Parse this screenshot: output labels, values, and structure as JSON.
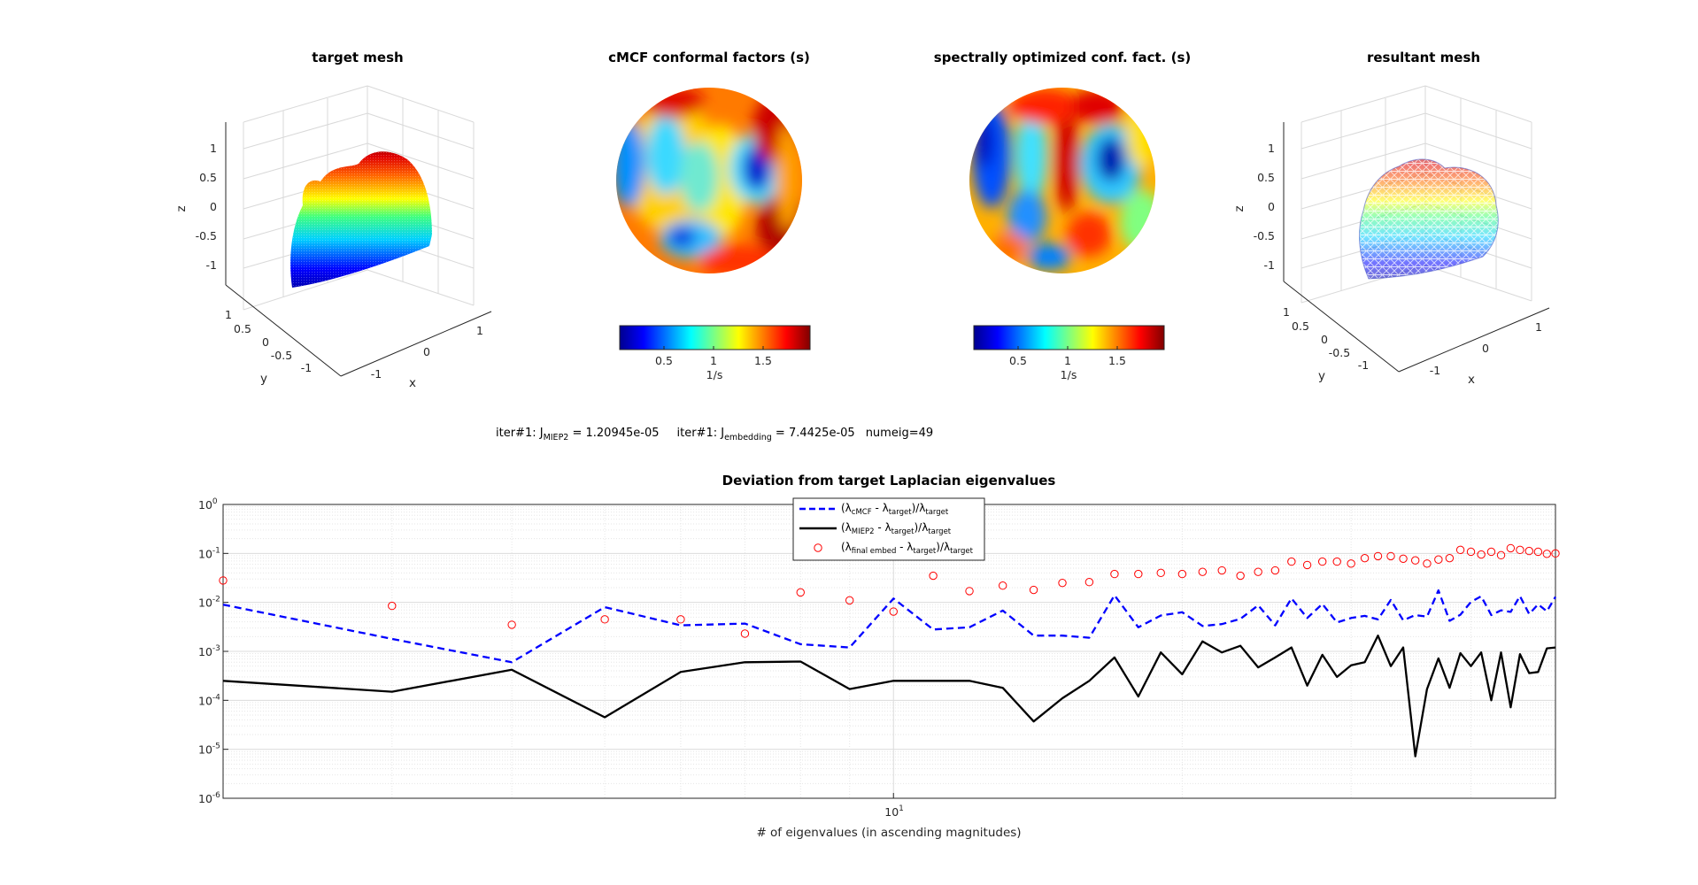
{
  "panels": {
    "target_mesh": {
      "title": "target mesh",
      "z_ticks": [
        "1",
        "0.5",
        "0",
        "-0.5",
        "-1"
      ],
      "y_ticks": [
        "1",
        "0.5",
        "0",
        "-0.5",
        "-1"
      ],
      "x_ticks": [
        "-1",
        "0",
        "1"
      ],
      "x_label": "x",
      "y_label": "y",
      "z_label": "z"
    },
    "cmcf": {
      "title": "cMCF conformal factors (s)",
      "colorbar_ticks": [
        "0.5",
        "1",
        "1.5"
      ],
      "colorbar_label": "1/s"
    },
    "spectral": {
      "title": "spectrally optimized conf. fact. (s)",
      "colorbar_ticks": [
        "0.5",
        "1",
        "1.5"
      ],
      "colorbar_label": "1/s"
    },
    "resultant_mesh": {
      "title": "resultant mesh",
      "z_ticks": [
        "1",
        "0.5",
        "0",
        "-0.5",
        "-1"
      ],
      "y_ticks": [
        "1",
        "0.5",
        "0",
        "-0.5",
        "-1"
      ],
      "x_ticks": [
        "-1",
        "0",
        "1"
      ],
      "x_label": "x",
      "y_label": "y",
      "z_label": "z"
    }
  },
  "info_line": {
    "part1": "iter#1: J",
    "part1_sub": "MIEP2",
    "part2": " = 1.20945e-05",
    "part3": "iter#1: J",
    "part3_sub": "embedding",
    "part4": " = 7.4425e-05",
    "part5": "numeig=49"
  },
  "legend": {
    "cmcf": {
      "a": "(λ",
      "sub1": "cMCF",
      "b": " - λ",
      "sub2": "target",
      "c": ")/λ",
      "sub3": "target"
    },
    "miep2": {
      "a": "(λ",
      "sub1": "MIEP2",
      "b": " - λ",
      "sub2": "target",
      "c": ")/λ",
      "sub3": "target"
    },
    "final": {
      "a": "(λ",
      "sub1": "final embed",
      "b": " - λ",
      "sub2": "target",
      "c": ")/λ",
      "sub3": "target"
    }
  },
  "colors": {
    "cmcf": "#0000ff",
    "miep2": "#000000",
    "final": "#ff0000"
  },
  "chart_data": {
    "type": "line",
    "title": "Deviation from target Laplacian eigenvalues",
    "xlabel": "# of eigenvalues (in ascending magnitudes)",
    "ylabel": "",
    "xscale": "log",
    "yscale": "log",
    "xlim": [
      2,
      49
    ],
    "ylim": [
      1e-06,
      1
    ],
    "x_ticks": [
      {
        "value": 10,
        "base": "10",
        "exp": "1"
      }
    ],
    "y_ticks": [
      {
        "value": 1,
        "base": "10",
        "exp": "0"
      },
      {
        "value": 0.1,
        "base": "10",
        "exp": "-1"
      },
      {
        "value": 0.01,
        "base": "10",
        "exp": "-2"
      },
      {
        "value": 0.001,
        "base": "10",
        "exp": "-3"
      },
      {
        "value": 0.0001,
        "base": "10",
        "exp": "-4"
      },
      {
        "value": 1e-05,
        "base": "10",
        "exp": "-5"
      },
      {
        "value": 1e-06,
        "base": "10",
        "exp": "-6"
      }
    ],
    "grid": true,
    "legend_position": "top-center",
    "x": [
      2,
      3,
      4,
      5,
      6,
      7,
      8,
      9,
      10,
      11,
      12,
      13,
      14,
      15,
      16,
      17,
      18,
      19,
      20,
      21,
      22,
      23,
      24,
      25,
      26,
      27,
      28,
      29,
      30,
      31,
      32,
      33,
      34,
      35,
      36,
      37,
      38,
      39,
      40,
      41,
      42,
      43,
      44,
      45,
      46,
      47,
      48,
      49
    ],
    "series": [
      {
        "name": "cMCF",
        "style": "dashed",
        "values": [
          0.009,
          0.0018,
          0.0006,
          0.008,
          0.0034,
          0.0037,
          0.0014,
          0.0012,
          0.012,
          0.0028,
          0.0031,
          0.0068,
          0.0021,
          0.0021,
          0.0019,
          0.014,
          0.0031,
          0.0054,
          0.0063,
          0.0033,
          0.0036,
          0.0046,
          0.0087,
          0.0034,
          0.0121,
          0.0048,
          0.0093,
          0.0039,
          0.0048,
          0.0053,
          0.0045,
          0.0112,
          0.0043,
          0.0055,
          0.0051,
          0.0176,
          0.0042,
          0.0056,
          0.0102,
          0.0133,
          0.0055,
          0.0069,
          0.0064,
          0.0134,
          0.0058,
          0.0091,
          0.0066,
          0.013
        ]
      },
      {
        "name": "MIEP2",
        "style": "solid",
        "values": [
          0.00025,
          0.00015,
          0.00042,
          4.5e-05,
          0.00038,
          0.0006,
          0.00062,
          0.00017,
          0.00025,
          0.00025,
          0.00025,
          0.00018,
          3.7e-05,
          0.00011,
          0.00025,
          0.00075,
          0.00012,
          0.00095,
          0.00034,
          0.0016,
          0.00095,
          0.0013,
          0.00047,
          0.00075,
          0.0012,
          0.0002,
          0.00085,
          0.0003,
          0.00052,
          0.0006,
          0.0021,
          0.0005,
          0.0012,
          7.2e-06,
          0.00017,
          0.00072,
          0.00018,
          0.00092,
          0.0005,
          0.00095,
          0.0001,
          0.00095,
          7.2e-05,
          0.00088,
          0.00036,
          0.00038,
          0.00115,
          0.0012
        ]
      },
      {
        "name": "final embed",
        "style": "circles",
        "values": [
          0.028,
          0.0085,
          0.0035,
          0.0045,
          0.0045,
          0.0023,
          0.016,
          0.011,
          0.0065,
          0.035,
          0.017,
          0.022,
          0.018,
          0.025,
          0.026,
          0.038,
          0.038,
          0.04,
          0.038,
          0.042,
          0.045,
          0.035,
          0.042,
          0.045,
          0.068,
          0.058,
          0.068,
          0.068,
          0.062,
          0.08,
          0.088,
          0.088,
          0.078,
          0.072,
          0.062,
          0.075,
          0.08,
          0.118,
          0.108,
          0.095,
          0.108,
          0.092,
          0.128,
          0.118,
          0.112,
          0.108,
          0.098,
          0.1
        ]
      }
    ]
  }
}
